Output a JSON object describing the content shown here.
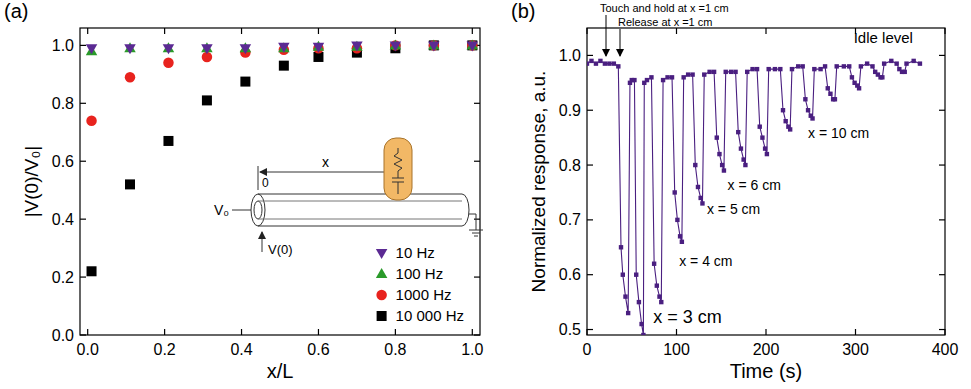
{
  "chart_data": [
    {
      "type": "scatter",
      "panel_label": "(a)",
      "xlabel": "x/L",
      "ylabel": "|V(0)/V₀|",
      "annotations": [
        "V₀",
        "0",
        "x",
        "V(0)"
      ],
      "x": [
        0.01,
        0.11,
        0.21,
        0.31,
        0.41,
        0.51,
        0.6,
        0.7,
        0.8,
        0.9,
        1.0
      ],
      "xlim": [
        -0.02,
        1.02
      ],
      "xticks": [
        {
          "value": 0,
          "label": "0.0"
        },
        {
          "value": 0.2,
          "label": "0.2"
        },
        {
          "value": 0.4,
          "label": "0.4"
        },
        {
          "value": 0.6,
          "label": "0.6"
        },
        {
          "value": 0.8,
          "label": "0.8"
        },
        {
          "value": 1,
          "label": "1.0"
        }
      ],
      "ylim": [
        0,
        1.06
      ],
      "yticks": [
        {
          "value": 0,
          "label": "0.0"
        },
        {
          "value": 0.2,
          "label": "0.2"
        },
        {
          "value": 0.4,
          "label": "0.4"
        },
        {
          "value": 0.6,
          "label": "0.6"
        },
        {
          "value": 0.8,
          "label": "0.8"
        },
        {
          "value": 1,
          "label": "1.0"
        }
      ],
      "legend": "lower right",
      "series": [
        {
          "name": "10 Hz",
          "color": "#5b2a93",
          "marker": "triangle-down",
          "values": [
            0.99,
            0.99,
            0.99,
            0.99,
            0.99,
            0.995,
            0.995,
            1.0,
            1.0,
            1.0,
            1.0
          ]
        },
        {
          "name": "100 Hz",
          "color": "#2a9a2a",
          "marker": "triangle-up",
          "values": [
            0.98,
            0.99,
            0.99,
            0.99,
            0.99,
            0.99,
            0.995,
            0.995,
            1.0,
            1.0,
            1.0
          ]
        },
        {
          "name": "1000 Hz",
          "color": "#e8231e",
          "marker": "circle",
          "values": [
            0.74,
            0.89,
            0.94,
            0.96,
            0.975,
            0.985,
            0.99,
            0.99,
            1.0,
            1.0,
            1.0
          ]
        },
        {
          "name": "10 000 Hz",
          "color": "#000000",
          "marker": "square",
          "values": [
            0.22,
            0.52,
            0.67,
            0.81,
            0.875,
            0.93,
            0.96,
            0.975,
            0.99,
            1.0,
            1.0
          ]
        }
      ]
    },
    {
      "type": "line",
      "panel_label": "(b)",
      "xlabel": "Time (s)",
      "ylabel": "Normalized response, a.u.",
      "annotations": [
        "Touch and hold at x =1 cm",
        "Release at x =1 cm",
        "Idle level",
        "x = 3 cm",
        "x = 4 cm",
        "x = 5 cm",
        "x = 6 cm",
        "x = 10 cm"
      ],
      "color": "#4a1f80",
      "marker": "square",
      "line_style": "solid",
      "xlim": [
        0,
        400
      ],
      "xticks": [
        0,
        100,
        200,
        300,
        400
      ],
      "ylim": [
        0.49,
        1.05
      ],
      "yticks": [
        0.5,
        0.6,
        0.7,
        0.8,
        0.9,
        {
          "value": 1,
          "label": "1.0"
        }
      ],
      "x": [
        0,
        5,
        10,
        15,
        20,
        25,
        30,
        35,
        38,
        40,
        43,
        46,
        48,
        50,
        53,
        55,
        58,
        61,
        63,
        64,
        67,
        72,
        75,
        78,
        81,
        83,
        85,
        90,
        95,
        98,
        101,
        104,
        106,
        108,
        113,
        118,
        121,
        124,
        127,
        129,
        131,
        137,
        142,
        145,
        148,
        151,
        153,
        155,
        161,
        166,
        169,
        172,
        175,
        177,
        179,
        185,
        190,
        193,
        196,
        199,
        201,
        203,
        210,
        216,
        219,
        222,
        225,
        227,
        229,
        236,
        241,
        244,
        247,
        250,
        252,
        254,
        261,
        266,
        269,
        272,
        275,
        277,
        279,
        287,
        293,
        296,
        299,
        302,
        304,
        306,
        313,
        319,
        322,
        325,
        328,
        330,
        332,
        340,
        346,
        349,
        352,
        355,
        357,
        365,
        372
      ],
      "values": [
        0.985,
        0.99,
        0.985,
        0.99,
        0.985,
        0.985,
        0.985,
        0.98,
        0.65,
        0.6,
        0.56,
        0.53,
        0.95,
        0.955,
        0.955,
        0.6,
        0.55,
        0.51,
        0.49,
        0.95,
        0.955,
        0.96,
        0.62,
        0.58,
        0.56,
        0.55,
        0.955,
        0.96,
        0.96,
        0.75,
        0.7,
        0.67,
        0.66,
        0.96,
        0.965,
        0.965,
        0.8,
        0.76,
        0.74,
        0.73,
        0.965,
        0.97,
        0.97,
        0.85,
        0.82,
        0.8,
        0.79,
        0.97,
        0.97,
        0.97,
        0.86,
        0.83,
        0.81,
        0.8,
        0.97,
        0.975,
        0.975,
        0.87,
        0.85,
        0.83,
        0.82,
        0.975,
        0.975,
        0.975,
        0.9,
        0.88,
        0.87,
        0.865,
        0.975,
        0.98,
        0.98,
        0.92,
        0.9,
        0.89,
        0.885,
        0.975,
        0.975,
        0.98,
        0.94,
        0.93,
        0.92,
        0.92,
        0.98,
        0.98,
        0.98,
        0.96,
        0.95,
        0.945,
        0.94,
        0.98,
        0.985,
        0.98,
        0.97,
        0.965,
        0.96,
        0.96,
        0.985,
        0.99,
        0.985,
        0.975,
        0.97,
        0.97,
        0.985,
        0.99,
        0.985
      ]
    }
  ]
}
